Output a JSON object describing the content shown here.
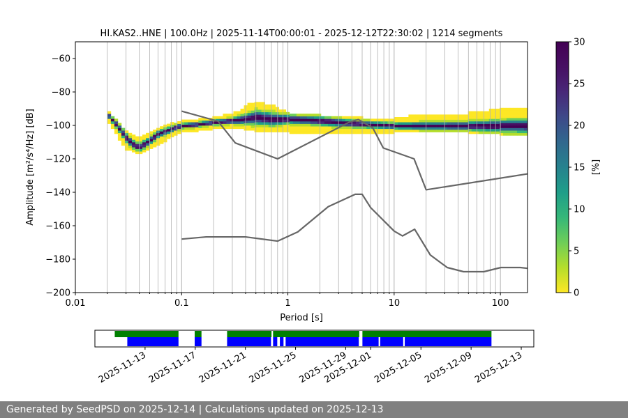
{
  "chart_data": [
    {
      "type": "heatmap",
      "title": "HI.KAS2..HNE | 100.0Hz | 2025-11-14T00:00:01 - 2025-12-12T22:30:02 | 1214 segments",
      "xlabel": "Period [s]",
      "ylabel": "Amplitude [m²/s⁴/Hz] [dB]",
      "x_scale": "log",
      "xlim": [
        0.01,
        180
      ],
      "ylim": [
        -200,
        -50
      ],
      "x_ticks": [
        0.01,
        0.1,
        1,
        10,
        100
      ],
      "x_tick_labels": [
        "0.01",
        "0.1",
        "1",
        "10",
        "100"
      ],
      "y_ticks": [
        -200,
        -180,
        -160,
        -140,
        -120,
        -100,
        -80,
        -60
      ],
      "y_tick_labels": [
        "−200",
        "−180",
        "−160",
        "−140",
        "−120",
        "−100",
        "−80",
        "−60"
      ],
      "grid": "x-major-and-minor",
      "colormap": "viridis_r",
      "colorbar": {
        "label": "[%]",
        "range": [
          0,
          30
        ],
        "ticks": [
          0,
          5,
          10,
          15,
          20,
          25,
          30
        ],
        "tick_labels": [
          "0",
          "5",
          "10",
          "15",
          "20",
          "25",
          "30"
        ]
      },
      "pdf_mode_curve": {
        "period": [
          0.02,
          0.025,
          0.03,
          0.035,
          0.04,
          0.05,
          0.06,
          0.08,
          0.1,
          0.15,
          0.2,
          0.3,
          0.4,
          0.5,
          0.7,
          1,
          2,
          3,
          5,
          10,
          20,
          50,
          100,
          180
        ],
        "amplitude": [
          -94,
          -101,
          -108,
          -112,
          -114,
          -110,
          -106,
          -103,
          -101,
          -100,
          -99,
          -98,
          -97,
          -96,
          -97,
          -97,
          -98,
          -99,
          -100,
          -101,
          -101,
          -101,
          -101,
          -101
        ]
      },
      "pdf_envelope": {
        "period": [
          0.02,
          0.03,
          0.04,
          0.05,
          0.08,
          0.1,
          0.2,
          0.3,
          0.4,
          0.5,
          0.7,
          1,
          2,
          5,
          10,
          20,
          50,
          100,
          180
        ],
        "upper": [
          -92,
          -104,
          -108,
          -105,
          -100,
          -98,
          -96,
          -94,
          -90,
          -87,
          -89,
          -94,
          -95,
          -97,
          -97,
          -95,
          -94,
          -91,
          -91
        ],
        "lower": [
          -97,
          -114,
          -117,
          -114,
          -107,
          -104,
          -102,
          -101,
          -102,
          -103,
          -104,
          -104,
          -105,
          -105,
          -104,
          -104,
          -104,
          -105,
          -106
        ]
      },
      "series": [
        {
          "name": "",
          "role": "upper reference model",
          "x": [
            0.1,
            0.22,
            0.32,
            0.8,
            3.8,
            4.6,
            6.3,
            7.9,
            15.4,
            20,
            180
          ],
          "y": [
            -91.5,
            -97.5,
            -110.5,
            -120,
            -98,
            -96.5,
            -101.5,
            -113.5,
            -120,
            -138.5,
            -129
          ]
        },
        {
          "name": "",
          "role": "lower reference model",
          "x": [
            0.1,
            0.17,
            0.4,
            0.8,
            1.24,
            2.4,
            4.3,
            5,
            6,
            10,
            12,
            15.6,
            21.9,
            31.6,
            45,
            70,
            101,
            154,
            180
          ],
          "y": [
            -168,
            -166.7,
            -166.7,
            -169.2,
            -163.7,
            -148.6,
            -141.2,
            -141.2,
            -149.1,
            -163.2,
            -166.1,
            -162.1,
            -177.5,
            -185,
            -187.5,
            -187.5,
            -185,
            -185,
            -185.5
          ]
        }
      ]
    },
    {
      "type": "timeline",
      "xlim": [
        "2025-11-09",
        "2025-12-14"
      ],
      "x_tick_labels": [
        "2025-11-13",
        "2025-11-17",
        "2025-11-21",
        "2025-11-25",
        "2025-11-29",
        "2025-12-01",
        "2025-12-05",
        "2025-12-09",
        "2025-12-13"
      ],
      "x_ticks": [
        "2025-11-13",
        "2025-11-17",
        "2025-11-21",
        "2025-11-25",
        "2025-11-29",
        "2025-12-01",
        "2025-12-05",
        "2025-12-09",
        "2025-12-13"
      ],
      "rows": [
        {
          "color": "#008000",
          "spans": [
            [
              "2025-11-10 14:00",
              "2025-11-15 16:00"
            ],
            [
              "2025-11-16 23:00",
              "2025-11-17 12:00"
            ],
            [
              "2025-11-19 13:00",
              "2025-11-23 02:00"
            ],
            [
              "2025-11-23 05:00",
              "2025-11-30 02:00"
            ],
            [
              "2025-11-30 08:00",
              "2025-12-10 15:00"
            ]
          ]
        },
        {
          "color": "#0000ff",
          "spans": [
            [
              "2025-11-11 14:00",
              "2025-11-15 16:00"
            ],
            [
              "2025-11-16 23:00",
              "2025-11-17 12:00"
            ],
            [
              "2025-11-19 13:00",
              "2025-11-23 01:00"
            ],
            [
              "2025-11-23 05:00",
              "2025-11-23 13:00"
            ],
            [
              "2025-11-23 18:00",
              "2025-11-24 01:00"
            ],
            [
              "2025-11-24 05:00",
              "2025-11-30 01:00"
            ],
            [
              "2025-11-30 08:00",
              "2025-12-01 15:00"
            ],
            [
              "2025-12-01 18:00",
              "2025-12-03 14:00"
            ],
            [
              "2025-12-03 17:00",
              "2025-12-10 15:00"
            ]
          ]
        }
      ]
    }
  ],
  "footer": {
    "text": "Generated by SeedPSD on 2025-12-14 | Calculations updated on 2025-12-13"
  }
}
